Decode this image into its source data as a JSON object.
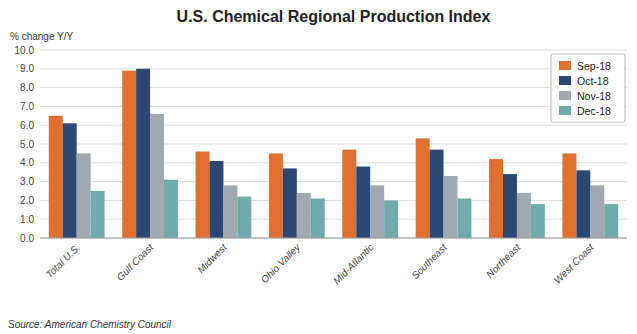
{
  "chart_data": {
    "type": "bar",
    "title": "U.S. Chemical Regional Production Index",
    "ylabel": "% change Y/Y",
    "source": "Source: American Chemistry Council",
    "categories": [
      "Total U.S.",
      "Gulf Coast",
      "Midwest",
      "Ohio Valley",
      "Mid-Atlantic",
      "Southeast",
      "Northeast",
      "West Coast"
    ],
    "series": [
      {
        "name": "Sep-18",
        "color": "#E07030",
        "values": [
          6.5,
          8.9,
          4.6,
          4.5,
          4.7,
          5.3,
          4.2,
          4.5
        ]
      },
      {
        "name": "Oct-18",
        "color": "#2B4875",
        "values": [
          6.1,
          9.0,
          4.1,
          3.7,
          3.8,
          4.7,
          3.4,
          3.6
        ]
      },
      {
        "name": "Nov-18",
        "color": "#A0A8B0",
        "values": [
          4.5,
          6.6,
          2.8,
          2.4,
          2.8,
          3.3,
          2.4,
          2.8
        ]
      },
      {
        "name": "Dec-18",
        "color": "#70AAAA",
        "values": [
          2.5,
          3.1,
          2.2,
          2.1,
          2.0,
          2.1,
          1.8,
          1.8
        ]
      }
    ],
    "ylim": [
      0,
      10.0
    ],
    "yticks": [
      {
        "value": 0.0,
        "label": "0.0"
      },
      {
        "value": 1.0,
        "label": "1.0"
      },
      {
        "value": 2.0,
        "label": "2.0"
      },
      {
        "value": 3.0,
        "label": "3.0"
      },
      {
        "value": 4.0,
        "label": "4.0"
      },
      {
        "value": 5.0,
        "label": "5.0"
      },
      {
        "value": 6.0,
        "label": "6.0"
      },
      {
        "value": 7.0,
        "label": "7.0"
      },
      {
        "value": 8.0,
        "label": "8.0"
      },
      {
        "value": 9.0,
        "label": "9.0"
      },
      {
        "value": 10.0,
        "label": "10.0"
      }
    ],
    "grid": true,
    "legend": "upper right"
  }
}
